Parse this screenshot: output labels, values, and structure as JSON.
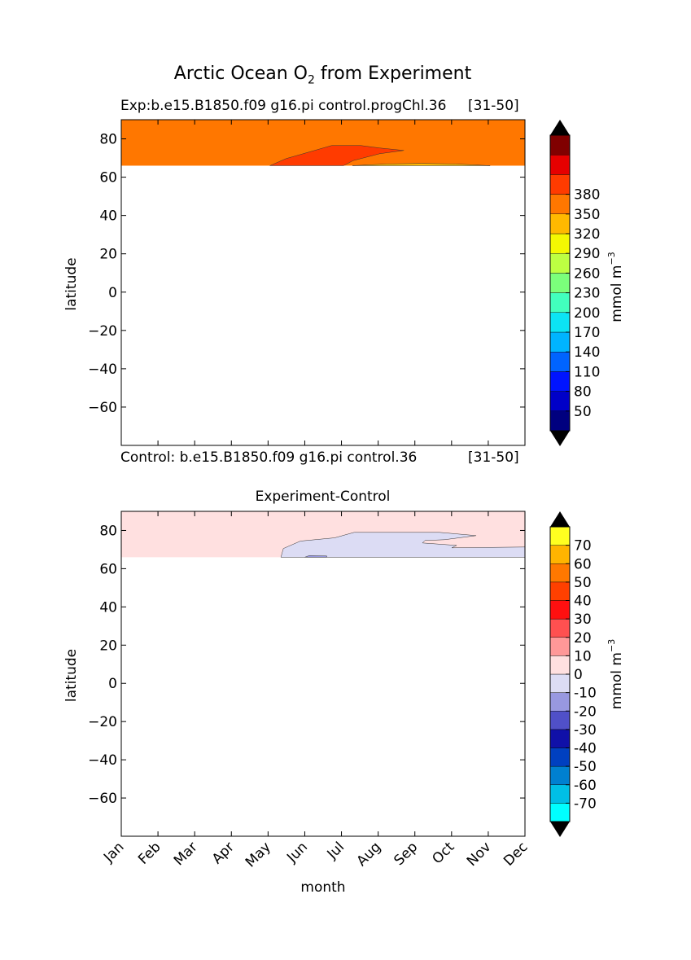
{
  "suptitle": {
    "main": "Arctic Ocean O",
    "sub": "2",
    "rest": " from Experiment"
  },
  "panels": {
    "top": {
      "title_left": "Exp:b.e15.B1850.f09 g16.pi control.progChl.36",
      "title_right": "[31-50]",
      "ylabel": "latitude"
    },
    "bottom_caption": {
      "left": "Control: b.e15.B1850.f09 g16.pi control.36",
      "right": "[31-50]"
    },
    "bottom": {
      "title": "Experiment-Control",
      "ylabel": "latitude",
      "xlabel": "month"
    }
  },
  "colorbars": {
    "top": {
      "label": "mmol m",
      "label_exp": "−3",
      "levels": [
        20,
        50,
        80,
        110,
        140,
        170,
        200,
        230,
        260,
        290,
        320,
        350,
        380,
        410
      ],
      "tick_labels": [
        "50",
        "80",
        "110",
        "140",
        "170",
        "200",
        "230",
        "260",
        "290",
        "320",
        "350",
        "380"
      ],
      "colors": [
        "#00007f",
        "#0000c8",
        "#0014ff",
        "#0064ff",
        "#00b4ff",
        "#0ce4f4",
        "#42ffbd",
        "#7bff7b",
        "#bdff42",
        "#f4f802",
        "#ffb900",
        "#ff7700",
        "#ff3b00",
        "#e60000",
        "#800000"
      ],
      "extend_color": "#000000"
    },
    "bottom": {
      "label": "mmol m",
      "label_exp": "−3",
      "levels": [
        -80,
        -70,
        -60,
        -50,
        -40,
        -30,
        -20,
        -10,
        0,
        10,
        20,
        30,
        40,
        50,
        60,
        70,
        80
      ],
      "tick_labels": [
        "-70",
        "-60",
        "-50",
        "-40",
        "-30",
        "-20",
        "-10",
        "0",
        "10",
        "20",
        "30",
        "40",
        "50",
        "60",
        "70"
      ],
      "colors": [
        "#00ffff",
        "#00bfe6",
        "#0080d0",
        "#0040c0",
        "#1010a8",
        "#5050c8",
        "#9898e0",
        "#dcdcf4",
        "#ffe0e0",
        "#ff9898",
        "#ff5050",
        "#ff1010",
        "#ff4000",
        "#ff7800",
        "#ffb400",
        "#ffff20"
      ],
      "extend_color": "#000000"
    }
  },
  "chart_data": [
    {
      "type": "contour",
      "title": "Exp:b.e15.B1850.f09 g16.pi control.progChl.36 [31-50]",
      "ylabel": "latitude",
      "x_categories": [
        "Jan",
        "Feb",
        "Mar",
        "Apr",
        "May",
        "Jun",
        "Jul",
        "Aug",
        "Sep",
        "Oct",
        "Nov",
        "Dec"
      ],
      "xlim": [
        0,
        11
      ],
      "ylim": [
        -80,
        90
      ],
      "yticks": [
        -60,
        -40,
        -20,
        0,
        20,
        40,
        60,
        80
      ],
      "data_lat_range": [
        66,
        90
      ],
      "units": "mmol m-3",
      "background_level": 365,
      "regions": [
        {
          "value": 395,
          "lat_max": 76.5,
          "month_range": [
            4.05,
            7.7
          ]
        },
        {
          "value": 335,
          "lat_max": 67.5,
          "month_range": [
            6.3,
            10.05
          ]
        }
      ]
    },
    {
      "type": "contour",
      "title": "Experiment-Control",
      "ylabel": "latitude",
      "xlabel": "month",
      "x_categories": [
        "Jan",
        "Feb",
        "Mar",
        "Apr",
        "May",
        "Jun",
        "Jul",
        "Aug",
        "Sep",
        "Oct",
        "Nov",
        "Dec"
      ],
      "xlim": [
        0,
        11
      ],
      "ylim": [
        -80,
        90
      ],
      "yticks": [
        -60,
        -40,
        -20,
        0,
        20,
        40,
        60,
        80
      ],
      "data_lat_range": [
        66,
        90
      ],
      "units": "mmol m-3",
      "background_level": 5,
      "regions": [
        {
          "value": -5,
          "lat_max": 79,
          "month_range": [
            4.35,
            11
          ]
        },
        {
          "value": -15,
          "lat_max": 66.5,
          "month_range": [
            5.0,
            5.6
          ]
        }
      ]
    }
  ]
}
